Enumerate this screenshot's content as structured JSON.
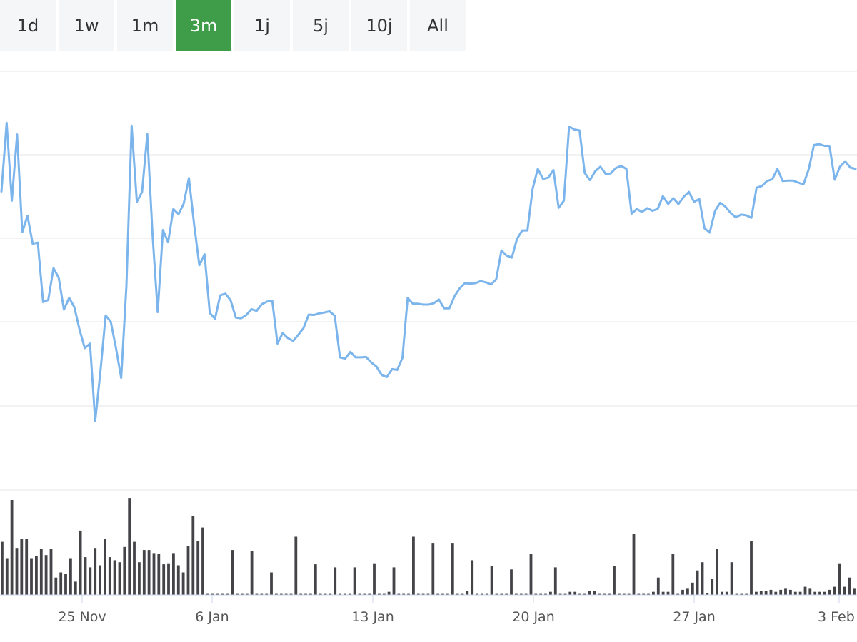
{
  "range_buttons": [
    "1d",
    "1w",
    "1m",
    "3m",
    "1j",
    "5j",
    "10j",
    "All"
  ],
  "active_range": "3m",
  "colors": {
    "accent_green": "#3f9c48",
    "line": "#7cb5ec",
    "volume_bar": "#434348",
    "grid": "#e6e6e6",
    "button_bg": "#f5f6f7"
  },
  "chart_data": {
    "type": "line",
    "title": "",
    "xlabel": "",
    "ylabel": "",
    "x_tick_labels": [
      "25 Nov",
      "6 Jan",
      "13 Jan",
      "20 Jan",
      "27 Jan",
      "3 Feb"
    ],
    "y_axis_labels_shown": false,
    "grid": true,
    "price_series": {
      "values": [
        0.713,
        0.877,
        0.691,
        0.849,
        0.616,
        0.655,
        0.588,
        0.591,
        0.449,
        0.454,
        0.53,
        0.507,
        0.431,
        0.459,
        0.437,
        0.383,
        0.339,
        0.35,
        0.165,
        0.283,
        0.417,
        0.402,
        0.339,
        0.268,
        0.488,
        0.87,
        0.688,
        0.712,
        0.85,
        0.612,
        0.425,
        0.621,
        0.592,
        0.671,
        0.659,
        0.684,
        0.745,
        0.634,
        0.537,
        0.563,
        0.423,
        0.409,
        0.465,
        0.469,
        0.453,
        0.412,
        0.41,
        0.418,
        0.432,
        0.428,
        0.444,
        0.45,
        0.452,
        0.35,
        0.375,
        0.363,
        0.356,
        0.371,
        0.387,
        0.419,
        0.418,
        0.422,
        0.424,
        0.427,
        0.416,
        0.317,
        0.314,
        0.33,
        0.317,
        0.317,
        0.318,
        0.305,
        0.295,
        0.275,
        0.27,
        0.289,
        0.287,
        0.316,
        0.459,
        0.445,
        0.445,
        0.443,
        0.443,
        0.446,
        0.455,
        0.434,
        0.434,
        0.463,
        0.482,
        0.494,
        0.493,
        0.494,
        0.499,
        0.496,
        0.491,
        0.503,
        0.572,
        0.56,
        0.555,
        0.6,
        0.62,
        0.62,
        0.72,
        0.767,
        0.743,
        0.746,
        0.764,
        0.674,
        0.691,
        0.868,
        0.861,
        0.859,
        0.757,
        0.74,
        0.761,
        0.772,
        0.755,
        0.756,
        0.769,
        0.774,
        0.767,
        0.66,
        0.671,
        0.664,
        0.673,
        0.667,
        0.671,
        0.702,
        0.683,
        0.697,
        0.683,
        0.7,
        0.712,
        0.688,
        0.695,
        0.625,
        0.615,
        0.666,
        0.686,
        0.677,
        0.662,
        0.651,
        0.658,
        0.656,
        0.65,
        0.722,
        0.726,
        0.738,
        0.742,
        0.767,
        0.738,
        0.739,
        0.739,
        0.734,
        0.73,
        0.766,
        0.824,
        0.826,
        0.822,
        0.822,
        0.741,
        0.772,
        0.785,
        0.77,
        0.767
      ]
    },
    "volume_series": {
      "values": [
        0.52,
        0.36,
        0.93,
        0.46,
        0.55,
        0.55,
        0.36,
        0.38,
        0.45,
        0.39,
        0.45,
        0.17,
        0.22,
        0.21,
        0.36,
        0.13,
        0.63,
        0.37,
        0.27,
        0.46,
        0.29,
        0.55,
        0.37,
        0.34,
        0.32,
        0.47,
        0.95,
        0.52,
        0.32,
        0.44,
        0.44,
        0.41,
        0.4,
        0.3,
        0.31,
        0.41,
        0.29,
        0.22,
        0.48,
        0.77,
        0.53,
        0.66,
        0.01,
        0.01,
        0.01,
        0.01,
        0.01,
        0.44,
        0.01,
        0.01,
        0.01,
        0.43,
        0.01,
        0.01,
        0.01,
        0.22,
        0.01,
        0.01,
        0.01,
        0.01,
        0.57,
        0.01,
        0.01,
        0.01,
        0.3,
        0.01,
        0.01,
        0.01,
        0.27,
        0.01,
        0.01,
        0.01,
        0.27,
        0.01,
        0.01,
        0.01,
        0.31,
        0.01,
        0.01,
        0.03,
        0.27,
        0.01,
        0.01,
        0.01,
        0.57,
        0.01,
        0.01,
        0.01,
        0.51,
        0.01,
        0.01,
        0.01,
        0.51,
        0.01,
        0.01,
        0.04,
        0.34,
        0.01,
        0.01,
        0.01,
        0.28,
        0.01,
        0.01,
        0.01,
        0.25,
        0.01,
        0.01,
        0.01,
        0.4,
        0.01,
        0.01,
        0.01,
        0.03,
        0.27,
        0.01,
        0.01,
        0.03,
        0.03,
        0.01,
        0.01,
        0.04,
        0.04,
        0.01,
        0.01,
        0.01,
        0.28,
        0.01,
        0.01,
        0.01,
        0.6,
        0.01,
        0.01,
        0.01,
        0.03,
        0.17,
        0.03,
        0.03,
        0.4,
        0.01,
        0.05,
        0.06,
        0.12,
        0.24,
        0.32,
        0.02,
        0.16,
        0.45,
        0.03,
        0.03,
        0.32,
        0.01,
        0.01,
        0.01,
        0.53,
        0.03,
        0.04,
        0.04,
        0.05,
        0.03,
        0.05,
        0.06,
        0.05,
        0.03,
        0.03,
        0.08,
        0.06,
        0.03,
        0.03,
        0.03,
        0.05,
        0.08,
        0.31,
        0.08,
        0.17,
        0.06
      ]
    }
  }
}
